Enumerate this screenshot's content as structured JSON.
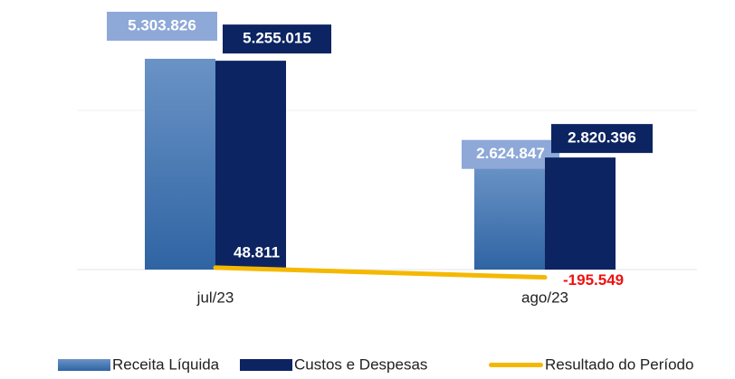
{
  "chart_data": {
    "type": "bar",
    "categories": [
      "jul/23",
      "ago/23"
    ],
    "ylim": [
      -1000000,
      6000000
    ],
    "legend": "bottom",
    "series": [
      {
        "name": "Receita Líquida",
        "color": "#4a7ab5",
        "values": [
          5303826,
          2624847
        ],
        "value_labels": [
          "5.303.826",
          "2.624.847"
        ]
      },
      {
        "name": "Custos e Despesas",
        "color": "#0c2461",
        "values": [
          5255015,
          2820396
        ],
        "value_labels": [
          "5.255.015",
          "2.820.396"
        ]
      },
      {
        "name": "Resultado do Período",
        "type": "line",
        "color": "#f5b800",
        "values": [
          48811,
          -195549
        ],
        "value_labels": [
          "48.811",
          "-195.549"
        ]
      }
    ]
  }
}
